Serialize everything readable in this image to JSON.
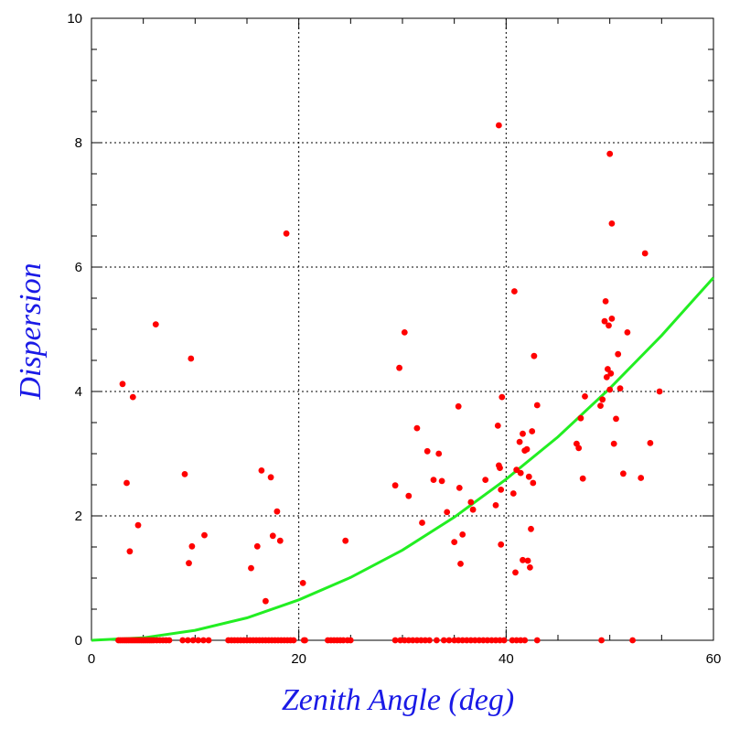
{
  "chart_data": {
    "type": "scatter",
    "title": "",
    "xlabel": "Zenith Angle (deg)",
    "ylabel": "Dispersion",
    "xlim": [
      0,
      60
    ],
    "ylim": [
      0,
      10
    ],
    "x_ticks": [
      "0",
      "20",
      "40",
      "60"
    ],
    "y_ticks": [
      "0",
      "2",
      "4",
      "6",
      "8",
      "10"
    ],
    "grid": true,
    "grid_style": "dotted",
    "colors": {
      "points": "#ff0000",
      "fit": "#22ee22",
      "axis_title": "#1a1ae6"
    },
    "series": [
      {
        "kind": "points",
        "points": [
          [
            2.6,
            0
          ],
          [
            2.8,
            0
          ],
          [
            3.0,
            0
          ],
          [
            3.2,
            0
          ],
          [
            3.4,
            0
          ],
          [
            3.6,
            0
          ],
          [
            3.8,
            0
          ],
          [
            4.0,
            0
          ],
          [
            4.2,
            0
          ],
          [
            4.4,
            0
          ],
          [
            4.6,
            0
          ],
          [
            4.8,
            0
          ],
          [
            5.0,
            0
          ],
          [
            5.2,
            0
          ],
          [
            5.4,
            0
          ],
          [
            5.6,
            0
          ],
          [
            5.8,
            0
          ],
          [
            6.0,
            0
          ],
          [
            6.3,
            0
          ],
          [
            6.6,
            0
          ],
          [
            6.9,
            0
          ],
          [
            7.2,
            0
          ],
          [
            7.5,
            0
          ],
          [
            8.8,
            0
          ],
          [
            9.3,
            0
          ],
          [
            9.8,
            0
          ],
          [
            10.3,
            0
          ],
          [
            10.8,
            0
          ],
          [
            11.3,
            0
          ],
          [
            13.2,
            0
          ],
          [
            13.5,
            0
          ],
          [
            13.8,
            0
          ],
          [
            14.1,
            0
          ],
          [
            14.4,
            0
          ],
          [
            14.7,
            0
          ],
          [
            15.0,
            0
          ],
          [
            15.3,
            0
          ],
          [
            15.6,
            0
          ],
          [
            15.9,
            0
          ],
          [
            16.2,
            0
          ],
          [
            16.5,
            0
          ],
          [
            16.8,
            0
          ],
          [
            17.1,
            0
          ],
          [
            17.4,
            0
          ],
          [
            17.7,
            0
          ],
          [
            18.0,
            0
          ],
          [
            18.3,
            0
          ],
          [
            18.6,
            0
          ],
          [
            18.9,
            0
          ],
          [
            19.2,
            0
          ],
          [
            19.5,
            0
          ],
          [
            20.5,
            0
          ],
          [
            20.6,
            0
          ],
          [
            22.8,
            0
          ],
          [
            23.1,
            0
          ],
          [
            23.4,
            0
          ],
          [
            23.7,
            0
          ],
          [
            24.0,
            0
          ],
          [
            24.3,
            0
          ],
          [
            24.7,
            0
          ],
          [
            25.0,
            0
          ],
          [
            29.3,
            0
          ],
          [
            29.8,
            0
          ],
          [
            30.2,
            0
          ],
          [
            30.6,
            0
          ],
          [
            31.0,
            0
          ],
          [
            31.4,
            0
          ],
          [
            31.8,
            0
          ],
          [
            32.2,
            0
          ],
          [
            32.6,
            0
          ],
          [
            33.3,
            0
          ],
          [
            34.0,
            0
          ],
          [
            34.5,
            0
          ],
          [
            35.0,
            0
          ],
          [
            35.4,
            0
          ],
          [
            35.8,
            0
          ],
          [
            36.2,
            0
          ],
          [
            36.6,
            0
          ],
          [
            37.0,
            0
          ],
          [
            37.4,
            0
          ],
          [
            37.8,
            0
          ],
          [
            38.2,
            0
          ],
          [
            38.6,
            0
          ],
          [
            39.0,
            0
          ],
          [
            39.4,
            0
          ],
          [
            39.8,
            0
          ],
          [
            40.6,
            0
          ],
          [
            41.0,
            0
          ],
          [
            41.4,
            0
          ],
          [
            41.8,
            0
          ],
          [
            43.0,
            0
          ],
          [
            49.2,
            0
          ],
          [
            52.2,
            0
          ],
          [
            3.0,
            4.12
          ],
          [
            3.4,
            2.53
          ],
          [
            3.7,
            1.43
          ],
          [
            4.0,
            3.91
          ],
          [
            4.5,
            1.85
          ],
          [
            6.2,
            5.08
          ],
          [
            9.0,
            2.67
          ],
          [
            9.4,
            1.24
          ],
          [
            9.6,
            4.53
          ],
          [
            9.7,
            1.51
          ],
          [
            10.9,
            1.69
          ],
          [
            15.4,
            1.16
          ],
          [
            16.0,
            1.51
          ],
          [
            16.4,
            2.73
          ],
          [
            16.8,
            0.63
          ],
          [
            17.3,
            2.62
          ],
          [
            17.5,
            1.68
          ],
          [
            17.9,
            2.07
          ],
          [
            18.2,
            1.6
          ],
          [
            18.8,
            6.54
          ],
          [
            20.4,
            0.92
          ],
          [
            24.5,
            1.6
          ],
          [
            29.3,
            2.49
          ],
          [
            29.7,
            4.38
          ],
          [
            30.2,
            4.95
          ],
          [
            30.6,
            2.32
          ],
          [
            31.4,
            3.41
          ],
          [
            31.9,
            1.89
          ],
          [
            32.4,
            3.04
          ],
          [
            33.0,
            2.58
          ],
          [
            33.5,
            3.0
          ],
          [
            33.8,
            2.56
          ],
          [
            34.3,
            2.06
          ],
          [
            35.0,
            1.58
          ],
          [
            35.4,
            3.76
          ],
          [
            35.5,
            2.45
          ],
          [
            35.6,
            1.23
          ],
          [
            35.8,
            1.7
          ],
          [
            36.6,
            2.22
          ],
          [
            36.8,
            2.1
          ],
          [
            38.0,
            2.58
          ],
          [
            39.0,
            2.17
          ],
          [
            39.2,
            3.45
          ],
          [
            39.3,
            2.81
          ],
          [
            39.4,
            2.77
          ],
          [
            39.5,
            2.42
          ],
          [
            39.5,
            1.54
          ],
          [
            39.6,
            3.91
          ],
          [
            39.3,
            8.28
          ],
          [
            40.7,
            2.36
          ],
          [
            40.8,
            5.61
          ],
          [
            40.9,
            1.09
          ],
          [
            41.0,
            2.74
          ],
          [
            41.3,
            3.19
          ],
          [
            41.4,
            2.69
          ],
          [
            41.6,
            3.32
          ],
          [
            41.6,
            1.29
          ],
          [
            41.8,
            3.05
          ],
          [
            42.0,
            3.07
          ],
          [
            42.1,
            1.28
          ],
          [
            42.2,
            2.63
          ],
          [
            42.3,
            1.17
          ],
          [
            42.4,
            1.79
          ],
          [
            42.5,
            3.36
          ],
          [
            42.6,
            2.53
          ],
          [
            42.7,
            4.57
          ],
          [
            43.0,
            3.78
          ],
          [
            46.8,
            3.16
          ],
          [
            47.0,
            3.09
          ],
          [
            47.2,
            3.57
          ],
          [
            47.4,
            2.6
          ],
          [
            47.6,
            3.92
          ],
          [
            49.1,
            3.77
          ],
          [
            49.3,
            3.87
          ],
          [
            49.5,
            5.13
          ],
          [
            49.6,
            5.45
          ],
          [
            49.7,
            4.23
          ],
          [
            49.8,
            4.36
          ],
          [
            49.9,
            5.06
          ],
          [
            50.0,
            4.03
          ],
          [
            50.0,
            7.82
          ],
          [
            50.1,
            4.29
          ],
          [
            50.2,
            6.7
          ],
          [
            50.2,
            5.17
          ],
          [
            50.4,
            3.16
          ],
          [
            50.6,
            3.56
          ],
          [
            50.8,
            4.6
          ],
          [
            51.0,
            4.05
          ],
          [
            51.3,
            2.68
          ],
          [
            51.7,
            4.95
          ],
          [
            53.0,
            2.61
          ],
          [
            53.4,
            6.22
          ],
          [
            53.9,
            3.17
          ],
          [
            54.8,
            4.0
          ]
        ]
      },
      {
        "kind": "fit_curve",
        "points": [
          [
            0,
            0
          ],
          [
            5,
            0.04
          ],
          [
            10,
            0.16
          ],
          [
            15,
            0.36
          ],
          [
            20,
            0.65
          ],
          [
            25,
            1.01
          ],
          [
            30,
            1.45
          ],
          [
            35,
            1.98
          ],
          [
            40,
            2.59
          ],
          [
            45,
            3.27
          ],
          [
            50,
            4.05
          ],
          [
            55,
            4.9
          ],
          [
            60,
            5.83
          ]
        ]
      }
    ]
  }
}
